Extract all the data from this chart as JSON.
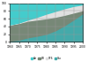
{
  "years": [
    1960,
    1965,
    1970,
    1975,
    1980,
    1985,
    1990,
    1995,
    2000
  ],
  "air": [
    55,
    50,
    42,
    35,
    27,
    20,
    13,
    7,
    3
  ],
  "sf6": [
    0,
    1,
    3,
    7,
    12,
    15,
    17,
    17,
    15
  ],
  "oil": [
    42,
    43,
    43,
    42,
    40,
    35,
    27,
    18,
    8
  ],
  "vac": [
    3,
    6,
    12,
    16,
    21,
    30,
    43,
    58,
    74
  ],
  "color_air": "#44cccc",
  "color_oil": "#778877",
  "color_sf6": "#e0e0e0",
  "color_vac": "#44aaaa",
  "legend_labels": [
    "Air",
    "Oil",
    "SF6",
    "Vac"
  ],
  "xlim": [
    1960,
    2000
  ],
  "ylim": [
    0,
    100
  ],
  "xticks": [
    1960,
    1965,
    1970,
    1975,
    1980,
    1985,
    1990,
    1995,
    2000
  ],
  "yticks": [
    0,
    20,
    40,
    60,
    80,
    100
  ],
  "bg_color": "#ffffff",
  "grid_color": "#999999"
}
